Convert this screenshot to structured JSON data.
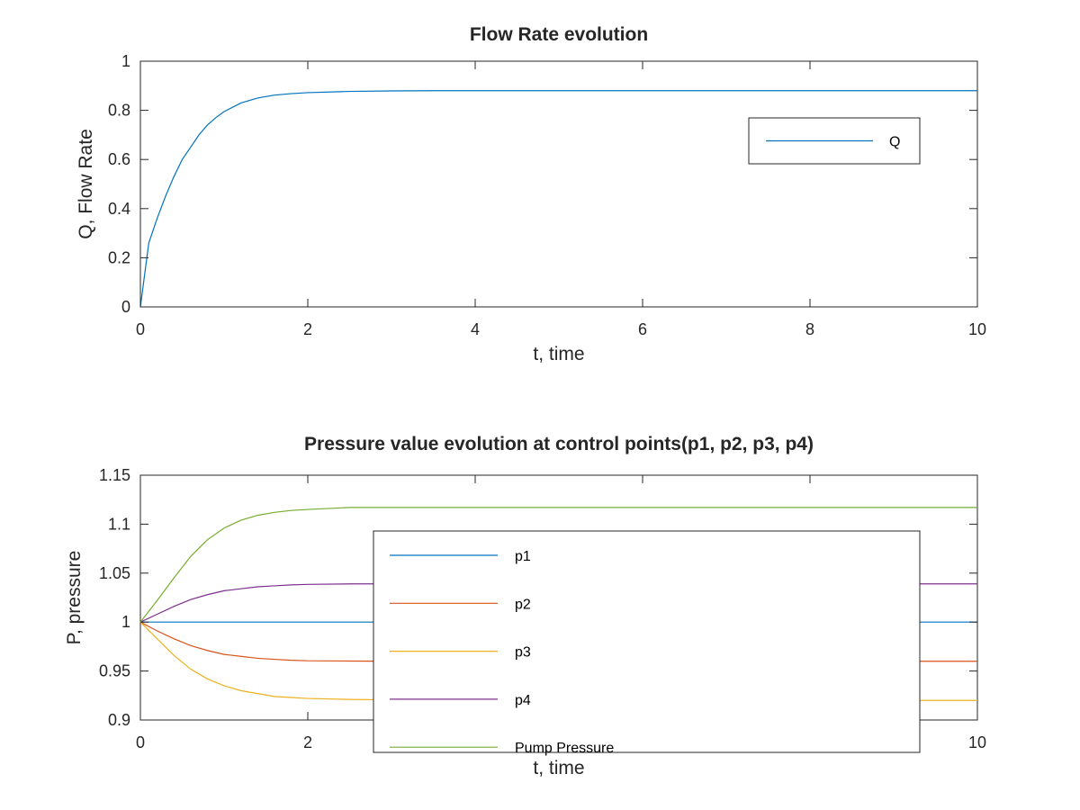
{
  "chart_data": [
    {
      "type": "line",
      "title": "Flow Rate evolution",
      "xlabel": "t, time",
      "ylabel": "Q, Flow Rate",
      "xlim": [
        0,
        10
      ],
      "ylim": [
        0,
        1
      ],
      "xticks": [
        0,
        2,
        4,
        6,
        8,
        10
      ],
      "yticks": [
        0,
        0.2,
        0.4,
        0.6,
        0.8,
        1
      ],
      "grid": false,
      "legend_position": "upper-right",
      "series": [
        {
          "name": "Q",
          "color": "#0072BD",
          "x": [
            0,
            0.1,
            0.2,
            0.3,
            0.4,
            0.5,
            0.6,
            0.7,
            0.8,
            0.9,
            1.0,
            1.2,
            1.4,
            1.6,
            1.8,
            2.0,
            2.5,
            3.0,
            3.5,
            4.0,
            5.0,
            6.0,
            7.0,
            8.0,
            9.0,
            10.0
          ],
          "y": [
            0,
            0.26,
            0.36,
            0.45,
            0.53,
            0.6,
            0.65,
            0.7,
            0.74,
            0.77,
            0.795,
            0.83,
            0.85,
            0.862,
            0.868,
            0.872,
            0.877,
            0.879,
            0.88,
            0.88,
            0.88,
            0.88,
            0.88,
            0.88,
            0.88,
            0.88
          ]
        }
      ]
    },
    {
      "type": "line",
      "title": "Pressure value evolution at control points(p1, p2, p3, p4)",
      "xlabel": "t, time",
      "ylabel": "P, pressure",
      "xlim": [
        0,
        10
      ],
      "ylim": [
        0.9,
        1.15
      ],
      "xticks": [
        0,
        2,
        4,
        6,
        8,
        10
      ],
      "yticks": [
        0.9,
        0.95,
        1,
        1.05,
        1.1,
        1.15
      ],
      "grid": false,
      "legend_position": "center-right",
      "series": [
        {
          "name": "p1",
          "color": "#0072BD",
          "x": [
            0,
            10
          ],
          "y": [
            1,
            1
          ]
        },
        {
          "name": "p2",
          "color": "#D95319",
          "x": [
            0,
            0.2,
            0.4,
            0.6,
            0.8,
            1.0,
            1.2,
            1.4,
            1.6,
            1.8,
            2.0,
            2.5,
            3.0,
            4.0,
            6.0,
            8.0,
            10.0
          ],
          "y": [
            1,
            0.991,
            0.983,
            0.976,
            0.971,
            0.967,
            0.965,
            0.963,
            0.962,
            0.961,
            0.9605,
            0.9602,
            0.96,
            0.96,
            0.96,
            0.96,
            0.96
          ]
        },
        {
          "name": "p3",
          "color": "#EDB120",
          "x": [
            0,
            0.2,
            0.4,
            0.6,
            0.8,
            1.0,
            1.2,
            1.4,
            1.6,
            1.8,
            2.0,
            2.5,
            3.0,
            4.0,
            6.0,
            8.0,
            10.0
          ],
          "y": [
            1,
            0.983,
            0.966,
            0.952,
            0.942,
            0.935,
            0.93,
            0.927,
            0.924,
            0.923,
            0.922,
            0.921,
            0.9205,
            0.92,
            0.92,
            0.92,
            0.92
          ]
        },
        {
          "name": "p4",
          "color": "#7E2F8E",
          "x": [
            0,
            0.2,
            0.4,
            0.6,
            0.8,
            1.0,
            1.2,
            1.4,
            1.6,
            1.8,
            2.0,
            2.5,
            3.0,
            4.0,
            6.0,
            8.0,
            10.0
          ],
          "y": [
            1,
            1.008,
            1.016,
            1.023,
            1.028,
            1.032,
            1.034,
            1.036,
            1.037,
            1.038,
            1.0385,
            1.039,
            1.039,
            1.039,
            1.039,
            1.039,
            1.039
          ]
        },
        {
          "name": "Pump Pressure",
          "color": "#77AC30",
          "x": [
            0,
            0.2,
            0.4,
            0.6,
            0.8,
            1.0,
            1.2,
            1.4,
            1.6,
            1.8,
            2.0,
            2.5,
            3.0,
            4.0,
            6.0,
            8.0,
            10.0
          ],
          "y": [
            1,
            1.022,
            1.045,
            1.067,
            1.084,
            1.096,
            1.104,
            1.109,
            1.112,
            1.114,
            1.115,
            1.117,
            1.117,
            1.117,
            1.117,
            1.117,
            1.117
          ]
        }
      ]
    }
  ]
}
